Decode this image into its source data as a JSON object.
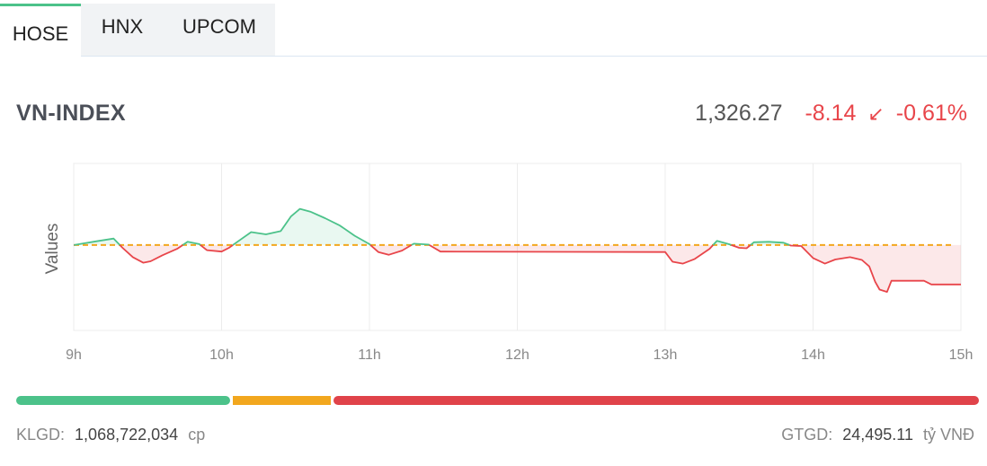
{
  "tabs": [
    {
      "label": "HOSE",
      "active": true
    },
    {
      "label": "HNX",
      "active": false
    },
    {
      "label": "UPCOM",
      "active": false
    }
  ],
  "index": {
    "name": "VN-INDEX",
    "value": "1,326.27",
    "change": "-8.14",
    "arrow_icon": "arrow-down-left-icon",
    "change_pct": "-0.61%"
  },
  "colors": {
    "up": "#4cc28a",
    "down": "#e8454a",
    "reference": "#f2a71e",
    "tab_accent": "#4cc28a"
  },
  "chart_data": {
    "type": "line",
    "ylabel": "Values",
    "xlabel": "",
    "x_ticks": [
      "9h",
      "10h",
      "11h",
      "12h",
      "13h",
      "14h",
      "15h"
    ],
    "reference": 1334.41,
    "ylim": [
      1316,
      1352
    ],
    "x_unit": "hour",
    "points": [
      [
        9.0,
        1334.4
      ],
      [
        9.15,
        1335.2
      ],
      [
        9.27,
        1335.8
      ],
      [
        9.33,
        1333.8
      ],
      [
        9.4,
        1331.8
      ],
      [
        9.47,
        1330.6
      ],
      [
        9.52,
        1330.9
      ],
      [
        9.6,
        1332.2
      ],
      [
        9.7,
        1333.6
      ],
      [
        9.77,
        1335.1
      ],
      [
        9.85,
        1334.6
      ],
      [
        9.9,
        1333.3
      ],
      [
        10.0,
        1333.0
      ],
      [
        10.05,
        1333.8
      ],
      [
        10.12,
        1335.4
      ],
      [
        10.2,
        1337.2
      ],
      [
        10.3,
        1336.7
      ],
      [
        10.4,
        1337.4
      ],
      [
        10.47,
        1340.6
      ],
      [
        10.53,
        1342.2
      ],
      [
        10.6,
        1341.6
      ],
      [
        10.7,
        1340.2
      ],
      [
        10.8,
        1338.6
      ],
      [
        10.9,
        1336.4
      ],
      [
        11.0,
        1334.6
      ],
      [
        11.06,
        1332.9
      ],
      [
        11.13,
        1332.3
      ],
      [
        11.22,
        1333.2
      ],
      [
        11.3,
        1334.7
      ],
      [
        11.4,
        1334.5
      ],
      [
        11.48,
        1333.0
      ],
      [
        11.5,
        1333.0
      ],
      [
        13.0,
        1332.9
      ],
      [
        13.05,
        1330.8
      ],
      [
        13.12,
        1330.4
      ],
      [
        13.2,
        1331.4
      ],
      [
        13.3,
        1333.6
      ],
      [
        13.35,
        1335.3
      ],
      [
        13.43,
        1334.6
      ],
      [
        13.5,
        1333.8
      ],
      [
        13.55,
        1333.7
      ],
      [
        13.6,
        1335.0
      ],
      [
        13.7,
        1335.1
      ],
      [
        13.8,
        1334.9
      ],
      [
        13.85,
        1334.3
      ],
      [
        13.92,
        1334.2
      ],
      [
        14.0,
        1331.6
      ],
      [
        14.08,
        1330.4
      ],
      [
        14.15,
        1331.3
      ],
      [
        14.25,
        1331.8
      ],
      [
        14.33,
        1331.2
      ],
      [
        14.38,
        1329.8
      ],
      [
        14.42,
        1326.5
      ],
      [
        14.45,
        1324.8
      ],
      [
        14.5,
        1324.3
      ],
      [
        14.53,
        1326.7
      ],
      [
        14.7,
        1326.7
      ],
      [
        14.75,
        1326.7
      ],
      [
        14.8,
        1325.9
      ],
      [
        15.0,
        1325.9
      ]
    ]
  },
  "breadth_bar": {
    "up_fraction": 0.224,
    "flat_fraction": 0.104,
    "down_fraction": 0.672
  },
  "footer": {
    "volume_label": "KLGD:",
    "volume_value": "1,068,722,034",
    "volume_unit": "cp",
    "value_label": "GTGD:",
    "value_value": "24,495.11",
    "value_unit": "tỷ VNĐ"
  }
}
